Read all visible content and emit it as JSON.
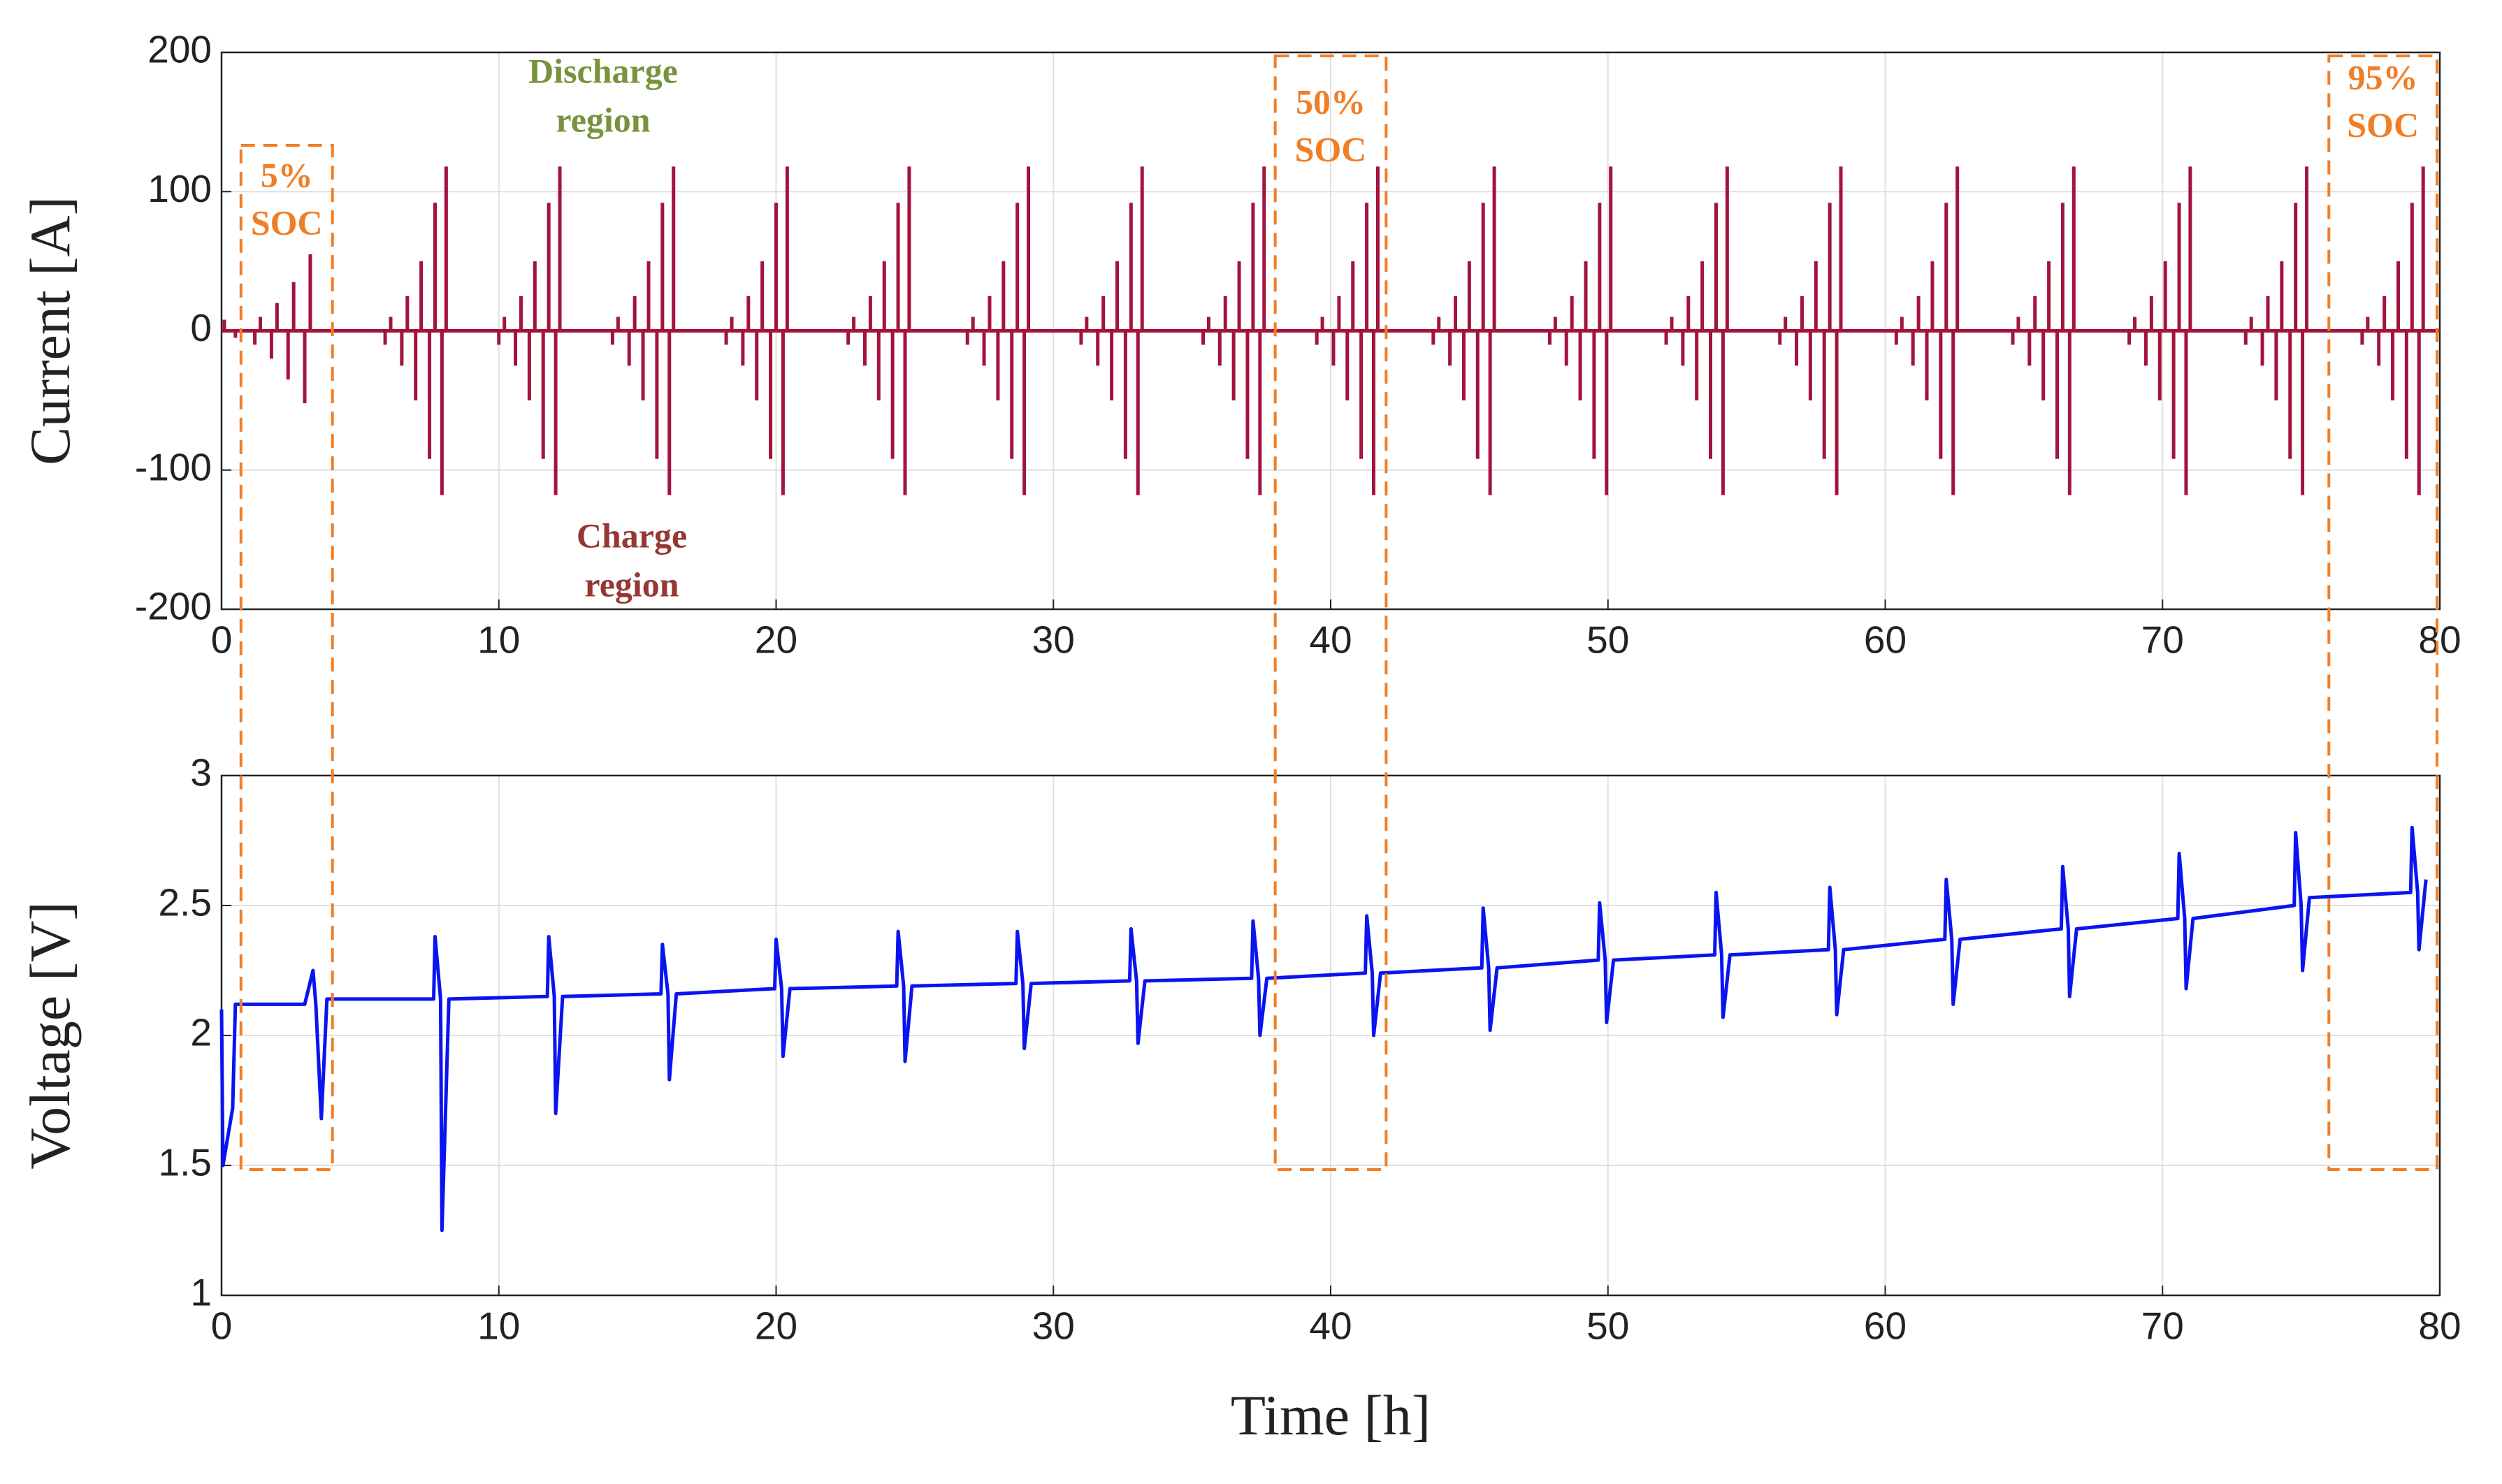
{
  "chart_data": [
    {
      "type": "stem",
      "ylabel": "Current [A]",
      "color": "#a4133c",
      "xlim": [
        0,
        80
      ],
      "xticks": [
        0,
        10,
        20,
        30,
        40,
        50,
        60,
        70,
        80
      ],
      "ylim": [
        -200,
        200
      ],
      "yticks": [
        -200,
        -100,
        0,
        100,
        200
      ],
      "grid": true,
      "annotations": [
        {
          "lines": [
            "Discharge",
            "region"
          ],
          "color": "#77933c"
        },
        {
          "lines": [
            "Charge",
            "region"
          ],
          "color": "#953735"
        }
      ],
      "x": [
        0.1,
        0.5,
        1.2,
        1.4,
        1.8,
        2.0,
        2.4,
        2.6,
        3.0,
        3.2,
        5.9,
        6.1,
        6.5,
        6.7,
        7.0,
        7.2,
        7.5,
        7.7,
        7.95,
        8.1,
        10.0,
        10.2,
        10.6,
        10.8,
        11.1,
        11.3,
        11.6,
        11.8,
        12.05,
        12.2,
        14.1,
        14.3,
        14.7,
        14.9,
        15.2,
        15.4,
        15.7,
        15.9,
        16.15,
        16.3,
        18.2,
        18.4,
        18.8,
        19.0,
        19.3,
        19.5,
        19.8,
        20.0,
        20.25,
        20.4,
        22.6,
        22.8,
        23.2,
        23.4,
        23.7,
        23.9,
        24.2,
        24.4,
        24.65,
        24.8,
        26.9,
        27.1,
        27.5,
        27.7,
        28.0,
        28.2,
        28.5,
        28.7,
        28.95,
        29.1,
        31.0,
        31.2,
        31.6,
        31.8,
        32.1,
        32.3,
        32.6,
        32.8,
        33.05,
        33.2,
        35.4,
        35.6,
        36.0,
        36.2,
        36.5,
        36.7,
        37.0,
        37.2,
        37.45,
        37.6,
        39.5,
        39.7,
        40.1,
        40.3,
        40.6,
        40.8,
        41.1,
        41.3,
        41.55,
        41.7,
        43.7,
        43.9,
        44.3,
        44.5,
        44.8,
        45.0,
        45.3,
        45.5,
        45.75,
        45.9,
        47.9,
        48.1,
        48.5,
        48.7,
        49.0,
        49.2,
        49.5,
        49.7,
        49.95,
        50.1,
        52.1,
        52.3,
        52.7,
        52.9,
        53.2,
        53.4,
        53.7,
        53.9,
        54.15,
        54.3,
        56.2,
        56.4,
        56.8,
        57.0,
        57.3,
        57.5,
        57.8,
        58.0,
        58.25,
        58.4,
        60.4,
        60.6,
        61.0,
        61.2,
        61.5,
        61.7,
        62.0,
        62.2,
        62.45,
        62.6,
        64.6,
        64.8,
        65.2,
        65.4,
        65.7,
        65.9,
        66.2,
        66.4,
        66.65,
        66.8,
        68.8,
        69.0,
        69.4,
        69.6,
        69.9,
        70.1,
        70.4,
        70.6,
        70.85,
        71.0,
        73.0,
        73.2,
        73.6,
        73.8,
        74.1,
        74.3,
        74.6,
        74.8,
        75.05,
        75.2,
        77.2,
        77.4,
        77.8,
        78.0,
        78.3,
        78.5,
        78.8,
        79.0,
        79.25,
        79.4
      ],
      "values": [
        8,
        -5,
        -10,
        10,
        -20,
        20,
        -35,
        35,
        -52,
        55,
        -10,
        10,
        -25,
        25,
        -50,
        50,
        -92,
        92,
        -118,
        118,
        -10,
        10,
        -25,
        25,
        -50,
        50,
        -92,
        92,
        -118,
        118,
        -10,
        10,
        -25,
        25,
        -50,
        50,
        -92,
        92,
        -118,
        118,
        -10,
        10,
        -25,
        25,
        -50,
        50,
        -92,
        92,
        -118,
        118,
        -10,
        10,
        -25,
        25,
        -50,
        50,
        -92,
        92,
        -118,
        118,
        -10,
        10,
        -25,
        25,
        -50,
        50,
        -92,
        92,
        -118,
        118,
        -10,
        10,
        -25,
        25,
        -50,
        50,
        -92,
        92,
        -118,
        118,
        -10,
        10,
        -25,
        25,
        -50,
        50,
        -92,
        92,
        -118,
        118,
        -10,
        10,
        -25,
        25,
        -50,
        50,
        -92,
        92,
        -118,
        118,
        -10,
        10,
        -25,
        25,
        -50,
        50,
        -92,
        92,
        -118,
        118,
        -10,
        10,
        -25,
        25,
        -50,
        50,
        -92,
        92,
        -118,
        118,
        -10,
        10,
        -25,
        25,
        -50,
        50,
        -92,
        92,
        -118,
        118,
        -10,
        10,
        -25,
        25,
        -50,
        50,
        -92,
        92,
        -118,
        118,
        -10,
        10,
        -25,
        25,
        -50,
        50,
        -92,
        92,
        -118,
        118,
        -10,
        10,
        -25,
        25,
        -50,
        50,
        -92,
        92,
        -118,
        118,
        -10,
        10,
        -25,
        25,
        -50,
        50,
        -92,
        92,
        -118,
        118,
        -10,
        10,
        -25,
        25,
        -50,
        50,
        -92,
        92,
        -118,
        118,
        -10,
        10,
        -25,
        25,
        -50,
        50,
        -92,
        92,
        -118,
        118
      ]
    },
    {
      "type": "line",
      "ylabel": "Voltage [V]",
      "xlabel": "Time [h]",
      "color": "#0a14f0",
      "xlim": [
        0,
        80
      ],
      "xticks": [
        0,
        10,
        20,
        30,
        40,
        50,
        60,
        70,
        80
      ],
      "ylim": [
        1,
        3
      ],
      "yticks": [
        1,
        1.5,
        2,
        2.5,
        3
      ],
      "grid": true,
      "x": [
        0,
        0.05,
        0.4,
        0.5,
        3.0,
        3.3,
        3.4,
        3.6,
        3.8,
        7.65,
        7.7,
        7.9,
        7.95,
        8.2,
        11.75,
        11.8,
        12.0,
        12.05,
        12.3,
        15.85,
        15.9,
        16.1,
        16.15,
        16.4,
        19.95,
        20.0,
        20.2,
        20.25,
        20.5,
        24.35,
        24.4,
        24.6,
        24.65,
        24.9,
        28.65,
        28.7,
        28.9,
        28.95,
        29.2,
        32.75,
        32.8,
        33.0,
        33.05,
        33.3,
        37.15,
        37.2,
        37.4,
        37.45,
        37.7,
        41.25,
        41.3,
        41.5,
        41.55,
        41.8,
        45.45,
        45.5,
        45.7,
        45.75,
        46.0,
        49.65,
        49.7,
        49.9,
        49.95,
        50.2,
        53.85,
        53.9,
        54.1,
        54.15,
        54.4,
        57.95,
        58.0,
        58.2,
        58.25,
        58.5,
        62.15,
        62.2,
        62.4,
        62.45,
        62.7,
        66.35,
        66.4,
        66.6,
        66.65,
        66.9,
        70.55,
        70.6,
        70.8,
        70.85,
        71.1,
        74.75,
        74.8,
        75.0,
        75.05,
        75.3,
        78.95,
        79.0,
        79.2,
        79.25,
        79.5
      ],
      "values": [
        2.1,
        1.5,
        1.72,
        2.12,
        2.12,
        2.25,
        2.12,
        1.68,
        2.14,
        2.14,
        2.38,
        2.14,
        1.25,
        2.14,
        2.15,
        2.38,
        2.15,
        1.7,
        2.15,
        2.16,
        2.35,
        2.16,
        1.83,
        2.16,
        2.18,
        2.37,
        2.18,
        1.92,
        2.18,
        2.19,
        2.4,
        2.19,
        1.9,
        2.19,
        2.2,
        2.4,
        2.2,
        1.95,
        2.2,
        2.21,
        2.41,
        2.21,
        1.97,
        2.21,
        2.22,
        2.44,
        2.22,
        2.0,
        2.22,
        2.24,
        2.46,
        2.24,
        2.0,
        2.24,
        2.26,
        2.49,
        2.26,
        2.02,
        2.26,
        2.29,
        2.51,
        2.29,
        2.05,
        2.29,
        2.31,
        2.55,
        2.31,
        2.07,
        2.31,
        2.33,
        2.57,
        2.33,
        2.08,
        2.33,
        2.37,
        2.6,
        2.37,
        2.12,
        2.37,
        2.41,
        2.65,
        2.41,
        2.15,
        2.41,
        2.45,
        2.7,
        2.45,
        2.18,
        2.45,
        2.5,
        2.78,
        2.5,
        2.25,
        2.53,
        2.55,
        2.8,
        2.55,
        2.33,
        2.6
      ]
    }
  ],
  "soc_boxes": {
    "color": "#f07e26",
    "boxes": [
      {
        "lines": [
          "5%",
          "SOC"
        ],
        "x": [
          0.7,
          4.0
        ]
      },
      {
        "lines": [
          "50%",
          "SOC"
        ],
        "x": [
          38,
          42
        ]
      },
      {
        "lines": [
          "95%",
          "SOC"
        ],
        "x": [
          76,
          79.9
        ]
      }
    ]
  }
}
